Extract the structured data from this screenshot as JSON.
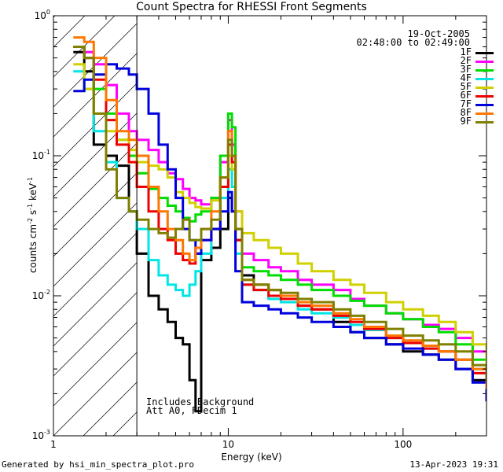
{
  "title": "Count Spectra for RHESSI Front Segments",
  "date_line": "19-Oct-2005",
  "time_line": "02:48:00 to 02:49:00",
  "note_lines": [
    "Includes Background",
    "Att A0, FDecim 1"
  ],
  "footer_left": "Generated by hsi_min_spectra_plot.pro",
  "footer_right": "13-Apr-2023 19:31",
  "chart_data": {
    "type": "line",
    "title": "Count Spectra for RHESSI Front Segments",
    "xlabel": "Energy (keV)",
    "ylabel": "counts cm^-2 s^-1 keV^-1",
    "xscale": "log",
    "yscale": "log",
    "xlim": [
      1,
      300
    ],
    "ylim": [
      0.001,
      1
    ],
    "x_tick_labels": [
      "1",
      "10",
      "100"
    ],
    "y_tick_labels": [
      "10^-3",
      "10^-2",
      "10^-1",
      "10^0"
    ],
    "hatched_region_below_keV": 3,
    "legend": [
      "1F",
      "2F",
      "3F",
      "4F",
      "5F",
      "6F",
      "7F",
      "8F",
      "9F"
    ],
    "series": [
      {
        "name": "1F",
        "color": "#000000",
        "x": [
          1.3,
          1.5,
          1.7,
          2.0,
          2.3,
          2.7,
          3.0,
          3.5,
          4.0,
          4.5,
          5.0,
          5.5,
          6.0,
          6.5,
          7.0,
          8.0,
          9.0,
          10.0,
          10.5,
          11.0,
          12.0,
          14,
          17,
          20,
          25,
          30,
          40,
          50,
          60,
          80,
          100,
          130,
          160,
          200,
          250,
          300
        ],
        "values": [
          0.55,
          0.4,
          0.12,
          0.1,
          0.085,
          0.04,
          0.02,
          0.01,
          0.008,
          0.0065,
          0.005,
          0.0045,
          0.0025,
          0.0015,
          0.018,
          0.022,
          0.03,
          0.05,
          0.04,
          0.025,
          0.014,
          0.012,
          0.011,
          0.01,
          0.0085,
          0.008,
          0.0065,
          0.0055,
          0.005,
          0.0045,
          0.004,
          0.0038,
          0.0035,
          0.003,
          0.0025,
          0.0018
        ]
      },
      {
        "name": "2F",
        "color": "#ff00ff",
        "x": [
          1.3,
          1.5,
          1.7,
          2.0,
          2.3,
          2.7,
          3.0,
          3.5,
          4.0,
          4.5,
          5.0,
          5.5,
          6.0,
          6.5,
          7.0,
          8.0,
          9.0,
          10.0,
          10.5,
          11.0,
          12.0,
          14,
          17,
          20,
          25,
          30,
          40,
          50,
          60,
          80,
          100,
          130,
          160,
          200,
          250,
          300
        ],
        "values": [
          0.6,
          0.55,
          0.45,
          0.32,
          0.2,
          0.15,
          0.13,
          0.11,
          0.09,
          0.075,
          0.068,
          0.058,
          0.05,
          0.048,
          0.045,
          0.05,
          0.09,
          0.18,
          0.12,
          0.04,
          0.02,
          0.018,
          0.016,
          0.015,
          0.013,
          0.012,
          0.011,
          0.0095,
          0.0085,
          0.0075,
          0.0068,
          0.0062,
          0.0058,
          0.005,
          0.004,
          0.003
        ]
      },
      {
        "name": "3F",
        "color": "#00dd00",
        "x": [
          1.3,
          1.5,
          1.7,
          2.0,
          2.3,
          2.7,
          3.0,
          3.5,
          4.0,
          4.5,
          5.0,
          5.5,
          6.0,
          6.5,
          7.0,
          8.0,
          9.0,
          10.0,
          10.5,
          11.0,
          12.0,
          14,
          17,
          20,
          25,
          30,
          40,
          50,
          60,
          80,
          100,
          130,
          160,
          200,
          250,
          300
        ],
        "values": [
          0.6,
          0.5,
          0.3,
          0.2,
          0.13,
          0.1,
          0.075,
          0.058,
          0.05,
          0.044,
          0.04,
          0.036,
          0.034,
          0.038,
          0.04,
          0.05,
          0.1,
          0.2,
          0.16,
          0.03,
          0.016,
          0.015,
          0.014,
          0.013,
          0.012,
          0.011,
          0.01,
          0.0092,
          0.0085,
          0.0075,
          0.0068,
          0.006,
          0.0055,
          0.0045,
          0.0035,
          0.0025
        ]
      },
      {
        "name": "4F",
        "color": "#00e5e5",
        "x": [
          1.3,
          1.5,
          1.7,
          2.0,
          2.3,
          2.7,
          3.0,
          3.5,
          4.0,
          4.5,
          5.0,
          5.5,
          6.0,
          6.5,
          7.0,
          8.0,
          9.0,
          10.0,
          10.5,
          11.0,
          12.0,
          14,
          17,
          20,
          25,
          30,
          40,
          50,
          60,
          80,
          100,
          130,
          160,
          200,
          250,
          300
        ],
        "values": [
          0.4,
          0.3,
          0.15,
          0.09,
          0.05,
          0.04,
          0.03,
          0.018,
          0.014,
          0.012,
          0.011,
          0.01,
          0.012,
          0.015,
          0.02,
          0.03,
          0.05,
          0.08,
          0.06,
          0.02,
          0.012,
          0.011,
          0.0095,
          0.009,
          0.008,
          0.0075,
          0.007,
          0.0062,
          0.0057,
          0.005,
          0.0046,
          0.0042,
          0.004,
          0.0035,
          0.003,
          0.0022
        ]
      },
      {
        "name": "5F",
        "color": "#d0d000",
        "x": [
          1.3,
          1.5,
          1.7,
          2.0,
          2.3,
          2.7,
          3.0,
          3.5,
          4.0,
          4.5,
          5.0,
          5.5,
          6.0,
          6.5,
          7.0,
          8.0,
          9.0,
          10.0,
          10.5,
          11.0,
          12.0,
          14,
          17,
          20,
          25,
          30,
          40,
          50,
          60,
          80,
          100,
          130,
          160,
          200,
          250,
          300
        ],
        "values": [
          0.45,
          0.3,
          0.2,
          0.15,
          0.13,
          0.11,
          0.09,
          0.085,
          0.08,
          0.07,
          0.055,
          0.05,
          0.046,
          0.043,
          0.042,
          0.048,
          0.06,
          0.1,
          0.08,
          0.04,
          0.028,
          0.025,
          0.022,
          0.02,
          0.017,
          0.015,
          0.013,
          0.012,
          0.0105,
          0.009,
          0.008,
          0.0072,
          0.0065,
          0.0055,
          0.0045,
          0.0032
        ]
      },
      {
        "name": "6F",
        "color": "#ee0000",
        "x": [
          1.3,
          1.5,
          1.7,
          2.0,
          2.3,
          2.7,
          3.0,
          3.5,
          4.0,
          4.5,
          5.0,
          5.5,
          6.0,
          6.5,
          7.0,
          8.0,
          9.0,
          10.0,
          10.5,
          11.0,
          12.0,
          14,
          17,
          20,
          25,
          30,
          40,
          50,
          60,
          80,
          100,
          130,
          160,
          200,
          250,
          300
        ],
        "values": [
          0.6,
          0.5,
          0.35,
          0.18,
          0.12,
          0.09,
          0.06,
          0.04,
          0.03,
          0.025,
          0.02,
          0.018,
          0.017,
          0.02,
          0.025,
          0.03,
          0.06,
          0.12,
          0.09,
          0.025,
          0.012,
          0.011,
          0.01,
          0.0095,
          0.0085,
          0.008,
          0.0072,
          0.0065,
          0.0058,
          0.005,
          0.0046,
          0.0042,
          0.004,
          0.0035,
          0.0028,
          0.002
        ]
      },
      {
        "name": "7F",
        "color": "#0000dd",
        "x": [
          1.3,
          1.5,
          1.7,
          2.0,
          2.3,
          2.7,
          3.0,
          3.5,
          4.0,
          4.5,
          5.0,
          5.5,
          6.0,
          6.5,
          7.0,
          8.0,
          9.0,
          10.0,
          10.5,
          11.0,
          12.0,
          14,
          17,
          20,
          25,
          30,
          40,
          50,
          60,
          80,
          100,
          130,
          160,
          200,
          250,
          300
        ],
        "values": [
          0.29,
          0.35,
          0.38,
          0.45,
          0.42,
          0.38,
          0.3,
          0.2,
          0.12,
          0.08,
          0.05,
          0.03,
          0.025,
          0.02,
          0.025,
          0.03,
          0.04,
          0.055,
          0.04,
          0.015,
          0.009,
          0.0085,
          0.008,
          0.0075,
          0.007,
          0.0065,
          0.006,
          0.0055,
          0.005,
          0.0045,
          0.0042,
          0.0038,
          0.0035,
          0.003,
          0.0024,
          0.0018
        ]
      },
      {
        "name": "8F",
        "color": "#ff7700",
        "x": [
          1.3,
          1.5,
          1.7,
          2.0,
          2.3,
          2.7,
          3.0,
          3.5,
          4.0,
          4.5,
          5.0,
          5.5,
          6.0,
          6.5,
          7.0,
          8.0,
          9.0,
          10.0,
          10.5,
          11.0,
          12.0,
          14,
          17,
          20,
          25,
          30,
          40,
          50,
          60,
          80,
          100,
          130,
          160,
          200,
          250,
          300
        ],
        "values": [
          0.7,
          0.65,
          0.5,
          0.25,
          0.15,
          0.13,
          0.1,
          0.06,
          0.04,
          0.03,
          0.025,
          0.02,
          0.018,
          0.022,
          0.03,
          0.04,
          0.07,
          0.15,
          0.1,
          0.03,
          0.013,
          0.012,
          0.011,
          0.01,
          0.009,
          0.0085,
          0.0075,
          0.0068,
          0.006,
          0.0052,
          0.0048,
          0.0044,
          0.004,
          0.0035,
          0.003,
          0.0022
        ]
      },
      {
        "name": "9F",
        "color": "#808000",
        "x": [
          1.3,
          1.5,
          1.7,
          2.0,
          2.3,
          2.7,
          3.0,
          3.5,
          4.0,
          4.5,
          5.0,
          5.5,
          6.0,
          6.5,
          7.0,
          8.0,
          9.0,
          10.0,
          10.5,
          11.0,
          12.0,
          14,
          17,
          20,
          25,
          30,
          40,
          50,
          60,
          80,
          100,
          130,
          160,
          200,
          250,
          300
        ],
        "values": [
          0.6,
          0.5,
          0.2,
          0.08,
          0.05,
          0.04,
          0.035,
          0.03,
          0.028,
          0.026,
          0.03,
          0.035,
          0.025,
          0.025,
          0.03,
          0.035,
          0.07,
          0.13,
          0.1,
          0.03,
          0.013,
          0.012,
          0.011,
          0.0105,
          0.0095,
          0.009,
          0.008,
          0.0072,
          0.0065,
          0.0058,
          0.0052,
          0.0048,
          0.0045,
          0.004,
          0.0032,
          0.0025
        ]
      }
    ]
  }
}
